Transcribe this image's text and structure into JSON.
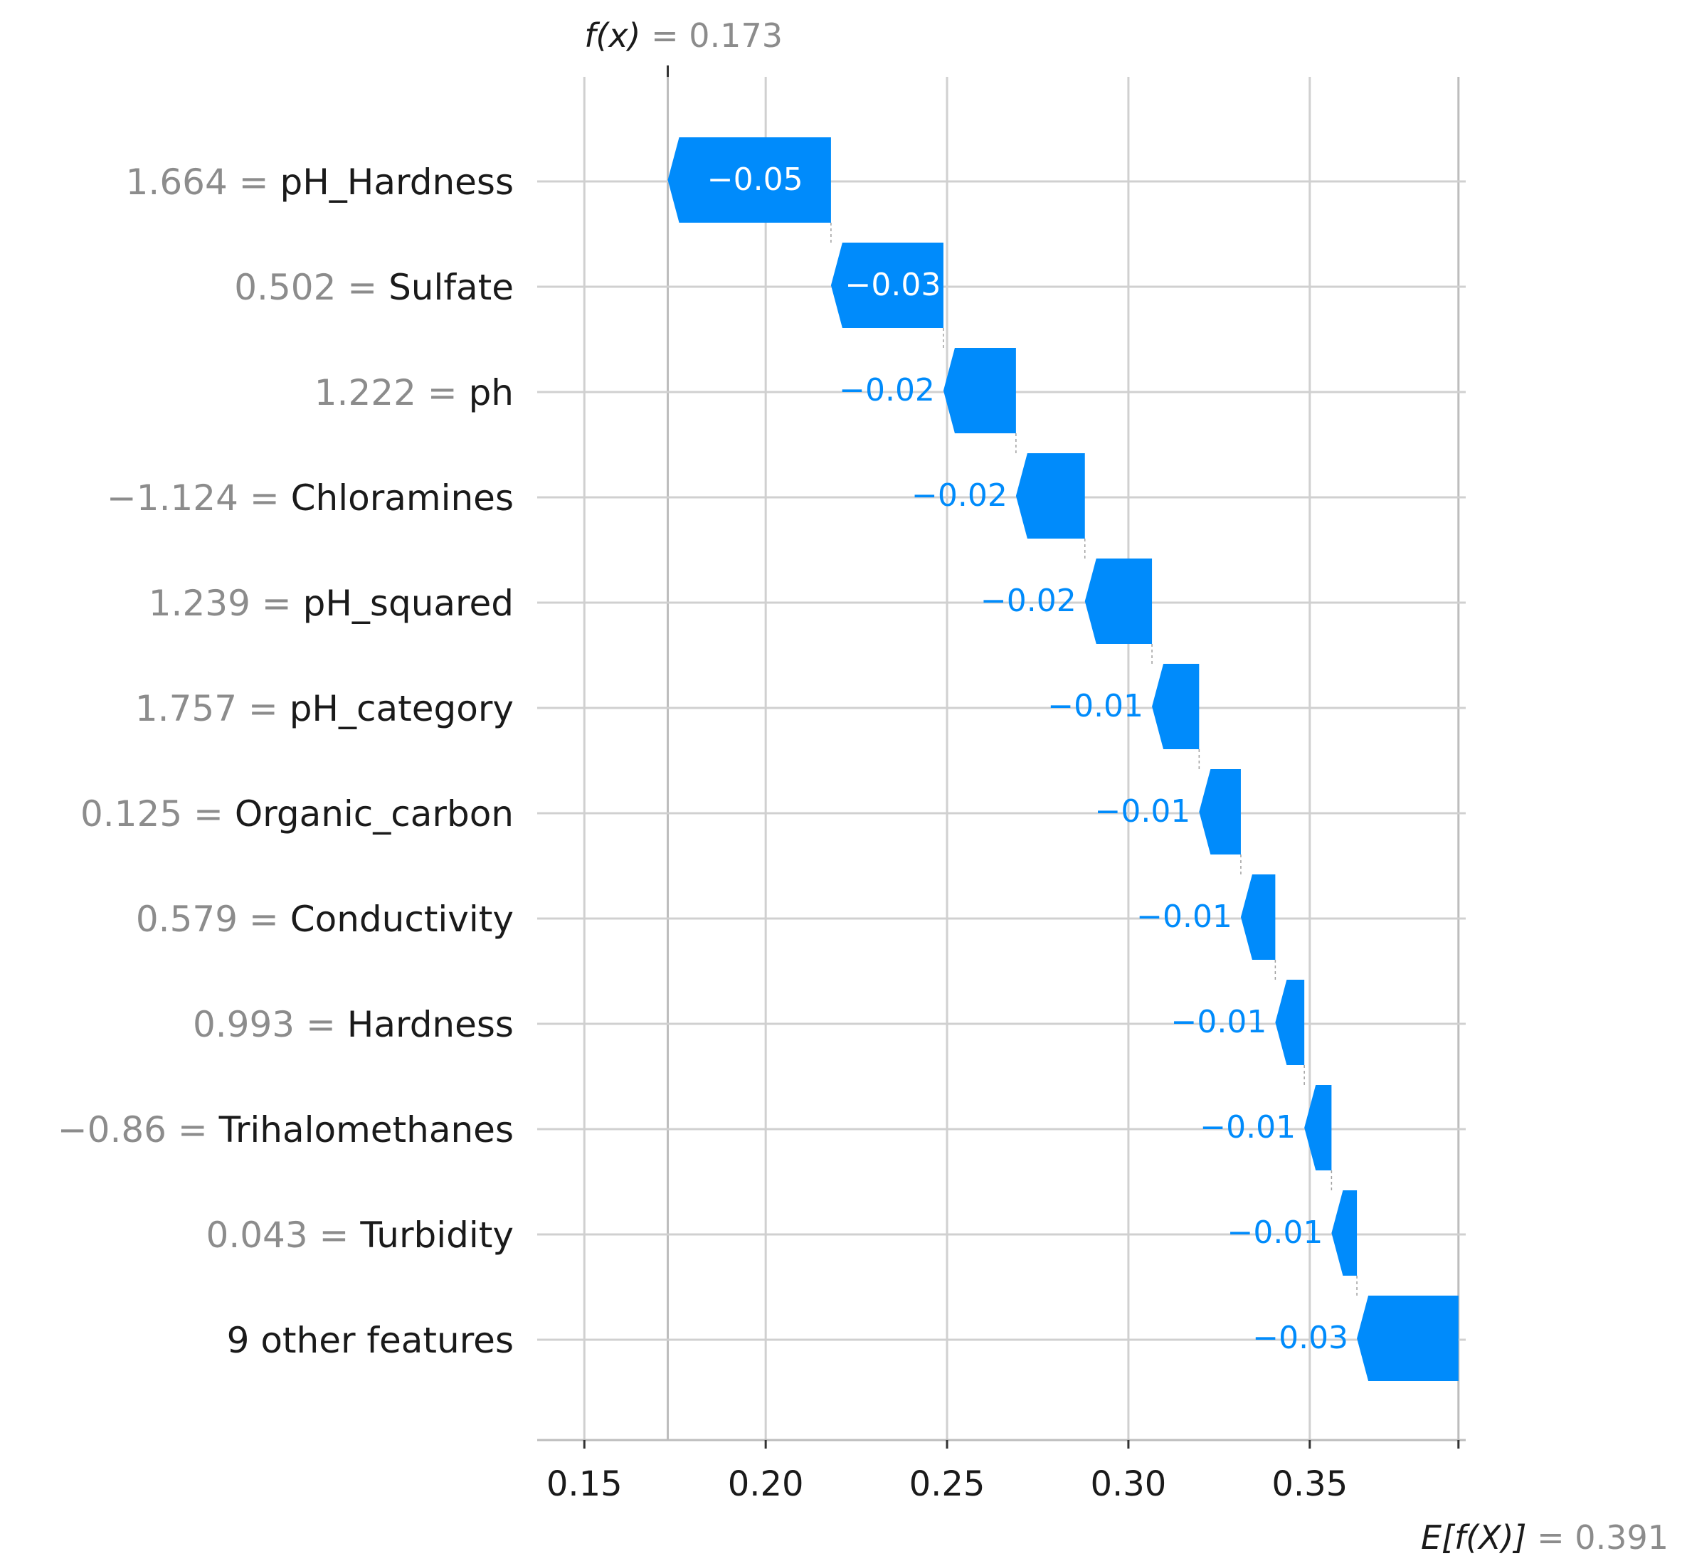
{
  "chart_data": {
    "type": "waterfall",
    "fx_label": "f(x)",
    "fx_value": "0.173",
    "base_label": "E[f(X)]",
    "base_value": "0.391",
    "fx": 0.173,
    "base": 0.391,
    "xlim": [
      0.137,
      0.393
    ],
    "xticks": [
      0.15,
      0.2,
      0.25,
      0.3,
      0.35
    ],
    "xtick_labels": [
      "0.15",
      "0.20",
      "0.25",
      "0.30",
      "0.35"
    ],
    "features": [
      {
        "value": "1.664",
        "name": "pH_Hardness",
        "label": "−0.05",
        "start": 0.218,
        "end": 0.173
      },
      {
        "value": "0.502",
        "name": "Sulfate",
        "label": "−0.03",
        "start": 0.249,
        "end": 0.218
      },
      {
        "value": "1.222",
        "name": "ph",
        "label": "−0.02",
        "start": 0.269,
        "end": 0.249
      },
      {
        "value": "−1.124",
        "name": "Chloramines",
        "label": "−0.02",
        "start": 0.288,
        "end": 0.269
      },
      {
        "value": "1.239",
        "name": "pH_squared",
        "label": "−0.02",
        "start": 0.3065,
        "end": 0.288
      },
      {
        "value": "1.757",
        "name": "pH_category",
        "label": "−0.01",
        "start": 0.3195,
        "end": 0.3065
      },
      {
        "value": "0.125",
        "name": "Organic_carbon",
        "label": "−0.01",
        "start": 0.331,
        "end": 0.3195
      },
      {
        "value": "0.579",
        "name": "Conductivity",
        "label": "−0.01",
        "start": 0.3405,
        "end": 0.331
      },
      {
        "value": "0.993",
        "name": "Hardness",
        "label": "−0.01",
        "start": 0.3485,
        "end": 0.3405
      },
      {
        "value": "−0.86",
        "name": "Trihalomethanes",
        "label": "−0.01",
        "start": 0.356,
        "end": 0.3485
      },
      {
        "value": "0.043",
        "name": "Turbidity",
        "label": "−0.01",
        "start": 0.363,
        "end": 0.356
      },
      {
        "value": "",
        "name": "9 other features",
        "label": "−0.03",
        "start": 0.391,
        "end": 0.363
      }
    ],
    "colors": {
      "negative": "#008bfb",
      "grid": "#d0d0d0",
      "value_text": "#8c8c8c",
      "name_text": "#1a1a1a"
    }
  }
}
